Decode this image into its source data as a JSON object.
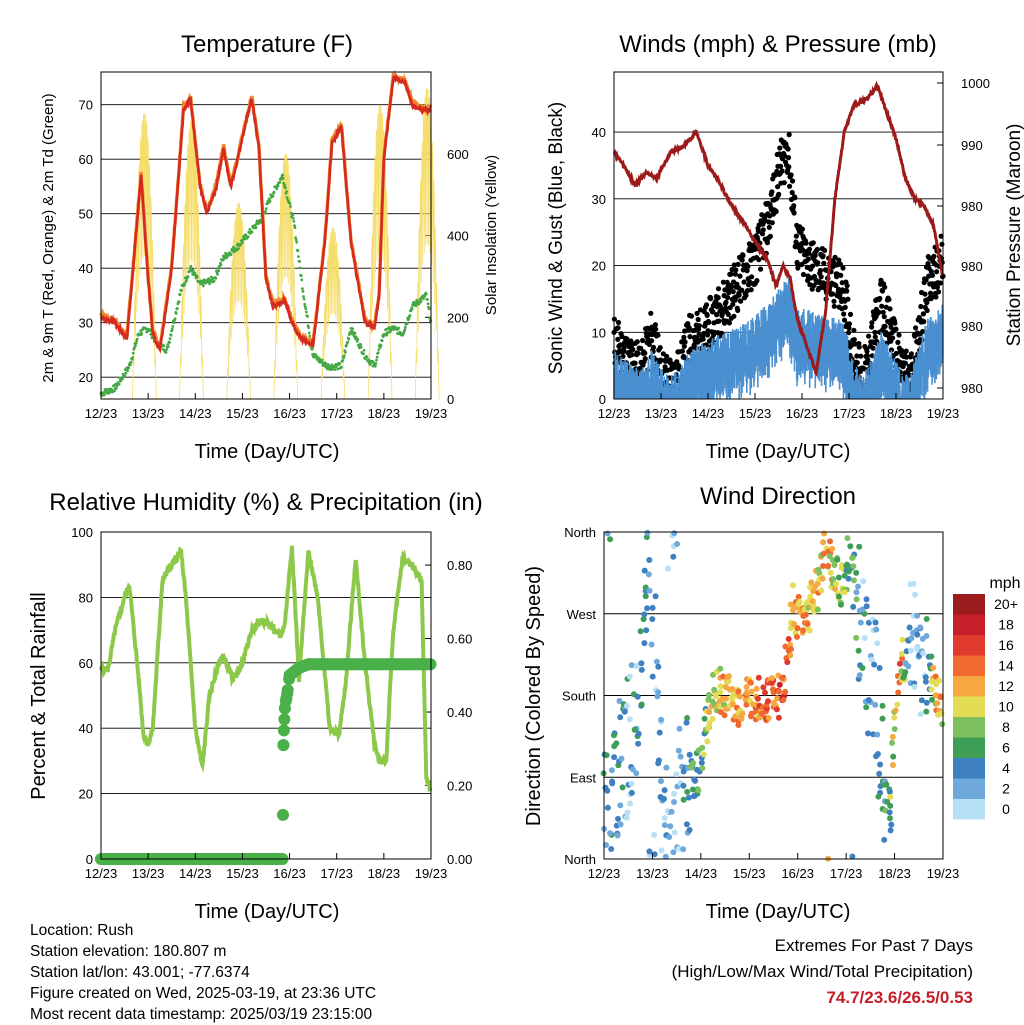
{
  "panels": {
    "temperature": {
      "title": "Temperature (F)",
      "xlabel": "Time (Day/UTC)",
      "ylabel_left": "2m & 9m T (Red, Orange) & 2m Td (Green)",
      "ylabel_right": "Solar Insolation (Yellow)"
    },
    "winds": {
      "title": "Winds (mph) & Pressure (mb)",
      "xlabel": "Time (Day/UTC)",
      "ylabel_left": "Sonic Wind & Gust (Blue, Black)",
      "ylabel_right": "Station Pressure (Maroon)"
    },
    "humidity": {
      "title": "Relative Humidity (%) & Precipitation (in)",
      "xlabel": "Time (Day/UTC)",
      "ylabel_left": "Percent & Total Rainfall"
    },
    "direction": {
      "title": "Wind Direction",
      "xlabel": "Time (Day/UTC)",
      "ylabel_left": "Direction (Colored By Speed)",
      "legend_title": "mph"
    }
  },
  "legend": {
    "labels": [
      "20+",
      "18",
      "16",
      "14",
      "12",
      "10",
      "8",
      "6",
      "4",
      "2",
      "0"
    ],
    "colors": [
      "#9b1c1c",
      "#c8202a",
      "#e03a2e",
      "#f06a30",
      "#f7a740",
      "#e2dd55",
      "#7cc060",
      "#3e9e56",
      "#3f80c0",
      "#6fa9dc",
      "#b8e0f5"
    ]
  },
  "info": {
    "location": "Location: Rush",
    "elevation": "Station elevation: 180.807 m",
    "latlon": "Station lat/lon: 43.001; -77.6374",
    "created": "Figure created on Wed, 2025-03-19, at 23:36 UTC",
    "recent": "Most recent data timestamp: 2025/03/19 23:15:00"
  },
  "extremes": {
    "line1": "Extremes For Past 7 Days",
    "line2": "(High/Low/Max Wind/Total Precipitation)",
    "values": "74.7/23.6/26.5/0.53"
  },
  "chart_data": [
    {
      "type": "line",
      "title": "Temperature (F)",
      "xlabel": "Time (Day/UTC)",
      "ylabel": "2m & 9m T (Red, Orange) & 2m Td (Green)",
      "y2label": "Solar Insolation (Yellow)",
      "xticks": [
        "12/23",
        "13/23",
        "14/23",
        "15/23",
        "16/23",
        "17/23",
        "18/23",
        "19/23"
      ],
      "yticks": [
        20,
        30,
        40,
        50,
        60,
        70
      ],
      "y2ticks": [
        0,
        200,
        400,
        600
      ],
      "ylim": [
        16,
        76
      ],
      "y2lim": [
        0,
        800
      ],
      "colors": {
        "t2m": "#d42a20",
        "t9m": "#f08a2a",
        "td": "#45a845",
        "solar": "#f5dd6a"
      },
      "series": [
        {
          "name": "2m T",
          "x": [
            12.0,
            12.3,
            12.55,
            12.7,
            12.85,
            13.0,
            13.1,
            13.25,
            13.5,
            13.75,
            13.9,
            14.1,
            14.25,
            14.45,
            14.6,
            14.75,
            14.9,
            15.05,
            15.2,
            15.35,
            15.5,
            15.65,
            15.9,
            16.05,
            16.25,
            16.5,
            16.75,
            16.9,
            17.1,
            17.3,
            17.6,
            17.8,
            17.9,
            18.0,
            18.2,
            18.45,
            18.6,
            18.8,
            18.9,
            19.0
          ],
          "y": [
            31,
            30,
            27,
            42,
            57,
            38,
            28,
            25,
            40,
            69,
            71,
            55,
            50,
            55,
            62,
            55,
            60,
            66,
            71,
            62,
            38,
            33,
            34,
            30,
            27,
            26,
            45,
            63,
            66,
            45,
            30,
            29,
            35,
            60,
            75,
            74,
            70,
            69,
            69,
            69
          ]
        },
        {
          "name": "2m Td",
          "x": [
            12.0,
            12.3,
            12.6,
            12.8,
            13.0,
            13.2,
            13.4,
            13.7,
            13.9,
            14.1,
            14.4,
            14.6,
            14.9,
            15.2,
            15.4,
            15.6,
            15.85,
            16.1,
            16.3,
            16.5,
            16.8,
            17.1,
            17.3,
            17.6,
            17.8,
            18.0,
            18.2,
            18.4,
            18.6,
            18.9,
            19.0
          ],
          "y": [
            17,
            18,
            22,
            28,
            29,
            26,
            25,
            36,
            40,
            37,
            38,
            42,
            44,
            47,
            49,
            53,
            57,
            48,
            35,
            24,
            22,
            22,
            29,
            24,
            22,
            28,
            29,
            28,
            33,
            35,
            30
          ]
        },
        {
          "name": "Solar Insolation",
          "peaks_x": [
            12.92,
            13.92,
            14.92,
            15.92,
            16.92,
            17.92,
            18.92
          ],
          "peaks_y": [
            700,
            680,
            480,
            600,
            420,
            720,
            760
          ]
        }
      ]
    },
    {
      "type": "scatter",
      "title": "Winds (mph) & Pressure (mb)",
      "xlabel": "Time (Day/UTC)",
      "ylabel": "Sonic Wind & Gust (Blue, Black)",
      "y2label": "Station Pressure (Maroon)",
      "xticks": [
        "12/23",
        "13/23",
        "14/23",
        "15/23",
        "16/23",
        "17/23",
        "18/23",
        "19/23"
      ],
      "yticks": [
        0,
        10,
        20,
        30,
        40
      ],
      "y2ticks": [
        "980",
        "980",
        "980",
        "980",
        "990",
        "1000",
        "1000"
      ],
      "ylim": [
        0,
        49
      ],
      "colors": {
        "wind": "#4a90d0",
        "gust": "#000000",
        "pressure": "#9c1a1a"
      },
      "series": [
        {
          "name": "Gust",
          "x": [
            12.0,
            12.3,
            12.6,
            12.8,
            13.0,
            13.2,
            13.4,
            13.6,
            13.9,
            14.2,
            14.5,
            14.8,
            15.0,
            15.3,
            15.5,
            15.7,
            15.9,
            16.1,
            16.4,
            16.7,
            16.9,
            17.1,
            17.3,
            17.5,
            17.7,
            17.9,
            18.1,
            18.3,
            18.5,
            18.7,
            19.0
          ],
          "y": [
            8,
            5,
            4,
            9,
            3,
            2,
            3,
            8,
            9,
            12,
            15,
            18,
            20,
            26,
            33,
            37,
            22,
            20,
            18,
            17,
            15,
            6,
            2,
            8,
            14,
            9,
            4,
            2,
            10,
            17,
            20
          ]
        },
        {
          "name": "Wind",
          "x": [
            12.0,
            12.3,
            12.6,
            12.8,
            13.0,
            13.2,
            13.4,
            13.6,
            13.9,
            14.2,
            14.5,
            14.8,
            15.0,
            15.3,
            15.5,
            15.7,
            15.9,
            16.1,
            16.4,
            16.7,
            16.9,
            17.1,
            17.3,
            17.5,
            17.7,
            17.9,
            18.1,
            18.3,
            18.5,
            18.7,
            19.0
          ],
          "y": [
            5,
            3,
            2,
            5,
            2,
            1,
            2,
            5,
            6,
            7,
            8,
            9,
            10,
            12,
            14,
            16,
            11,
            11,
            10,
            10,
            9,
            3,
            1,
            4,
            8,
            5,
            2,
            1,
            6,
            10,
            12
          ]
        },
        {
          "name": "Station Pressure",
          "x": [
            12.0,
            12.2,
            12.45,
            12.7,
            12.9,
            13.2,
            13.5,
            13.75,
            14.0,
            14.2,
            14.5,
            14.8,
            15.05,
            15.25,
            15.45,
            15.6,
            15.75,
            15.9,
            16.1,
            16.3,
            16.5,
            16.7,
            16.9,
            17.1,
            17.4,
            17.6,
            17.8,
            18.0,
            18.2,
            18.4,
            18.6,
            18.8,
            19.0
          ],
          "y": [
            37,
            35,
            32,
            34,
            33,
            37,
            38,
            40,
            35,
            33,
            29,
            26,
            23,
            21,
            17,
            20,
            18,
            12,
            8,
            4,
            13,
            30,
            40,
            44,
            45,
            47,
            43,
            39,
            33,
            30,
            29,
            26,
            18
          ]
        }
      ]
    },
    {
      "type": "line",
      "title": "Relative Humidity (%) & Precipitation (in)",
      "xlabel": "Time (Day/UTC)",
      "ylabel": "Percent & Total Rainfall",
      "xticks": [
        "12/23",
        "13/23",
        "14/23",
        "15/23",
        "16/23",
        "17/23",
        "18/23",
        "19/23"
      ],
      "yticks": [
        0,
        20,
        40,
        60,
        80,
        100
      ],
      "y2ticks": [
        "0.00",
        "0.20",
        "0.40",
        "0.60",
        "0.80"
      ],
      "ylim": [
        0,
        100
      ],
      "y2lim": [
        0,
        0.89
      ],
      "colors": {
        "rh": "#8cc84a",
        "precip": "#4ab04a"
      },
      "series": [
        {
          "name": "Relative Humidity",
          "x": [
            12.0,
            12.15,
            12.3,
            12.5,
            12.6,
            12.8,
            12.9,
            13.0,
            13.1,
            13.3,
            13.5,
            13.7,
            13.8,
            14.0,
            14.15,
            14.3,
            14.5,
            14.6,
            14.8,
            15.0,
            15.2,
            15.4,
            15.55,
            15.8,
            15.9,
            16.05,
            16.2,
            16.4,
            16.6,
            16.85,
            17.05,
            17.2,
            17.4,
            17.6,
            17.8,
            17.9,
            18.05,
            18.2,
            18.4,
            18.6,
            18.8,
            18.9,
            19.0
          ],
          "y": [
            58,
            58,
            70,
            80,
            84,
            55,
            38,
            35,
            40,
            85,
            90,
            94,
            80,
            40,
            28,
            50,
            60,
            62,
            55,
            60,
            70,
            73,
            72,
            68,
            72,
            96,
            55,
            94,
            80,
            40,
            38,
            55,
            92,
            60,
            35,
            30,
            30,
            70,
            92,
            90,
            85,
            25,
            21
          ]
        },
        {
          "name": "Total Precipitation",
          "x": [
            12.0,
            15.85,
            15.86,
            15.87,
            15.88,
            15.89,
            15.9,
            15.92,
            15.95,
            16.0,
            16.1,
            16.2,
            16.4,
            17.0,
            18.0,
            19.0
          ],
          "y": [
            0.0,
            0.0,
            0.12,
            0.31,
            0.35,
            0.38,
            0.41,
            0.43,
            0.45,
            0.5,
            0.51,
            0.52,
            0.53,
            0.53,
            0.53,
            0.53
          ]
        }
      ]
    },
    {
      "type": "scatter",
      "title": "Wind Direction",
      "xlabel": "Time (Day/UTC)",
      "ylabel": "Direction (Colored By Speed)",
      "xticks": [
        "12/23",
        "13/23",
        "14/23",
        "15/23",
        "16/23",
        "17/23",
        "18/23",
        "19/23"
      ],
      "yticks": [
        "North",
        "East",
        "South",
        "West",
        "North"
      ],
      "ylim": [
        0,
        360
      ],
      "color_levels_mph": [
        "20+",
        "18",
        "16",
        "14",
        "12",
        "10",
        "8",
        "6",
        "4",
        "2",
        "0"
      ],
      "series": [
        {
          "name": "Direction",
          "x": [
            12.0,
            12.2,
            12.4,
            12.6,
            12.8,
            12.9,
            13.0,
            13.2,
            13.4,
            13.7,
            13.9,
            14.1,
            14.3,
            14.5,
            14.8,
            15.0,
            15.3,
            15.5,
            15.7,
            15.9,
            16.1,
            16.4,
            16.6,
            16.9,
            17.1,
            17.3,
            17.6,
            17.9,
            18.1,
            18.3,
            18.6,
            18.9,
            19.0
          ],
          "y": [
            40,
            80,
            110,
            130,
            250,
            320,
            330,
            60,
            20,
            100,
            80,
            150,
            190,
            180,
            170,
            180,
            175,
            180,
            180,
            280,
            260,
            300,
            340,
            300,
            340,
            250,
            190,
            50,
            200,
            240,
            220,
            180,
            170
          ],
          "speed": [
            4,
            4,
            4,
            2,
            6,
            4,
            2,
            2,
            0,
            4,
            6,
            8,
            10,
            12,
            12,
            12,
            14,
            14,
            16,
            12,
            12,
            10,
            12,
            8,
            6,
            4,
            2,
            6,
            14,
            2,
            2,
            14,
            10
          ]
        }
      ]
    }
  ]
}
